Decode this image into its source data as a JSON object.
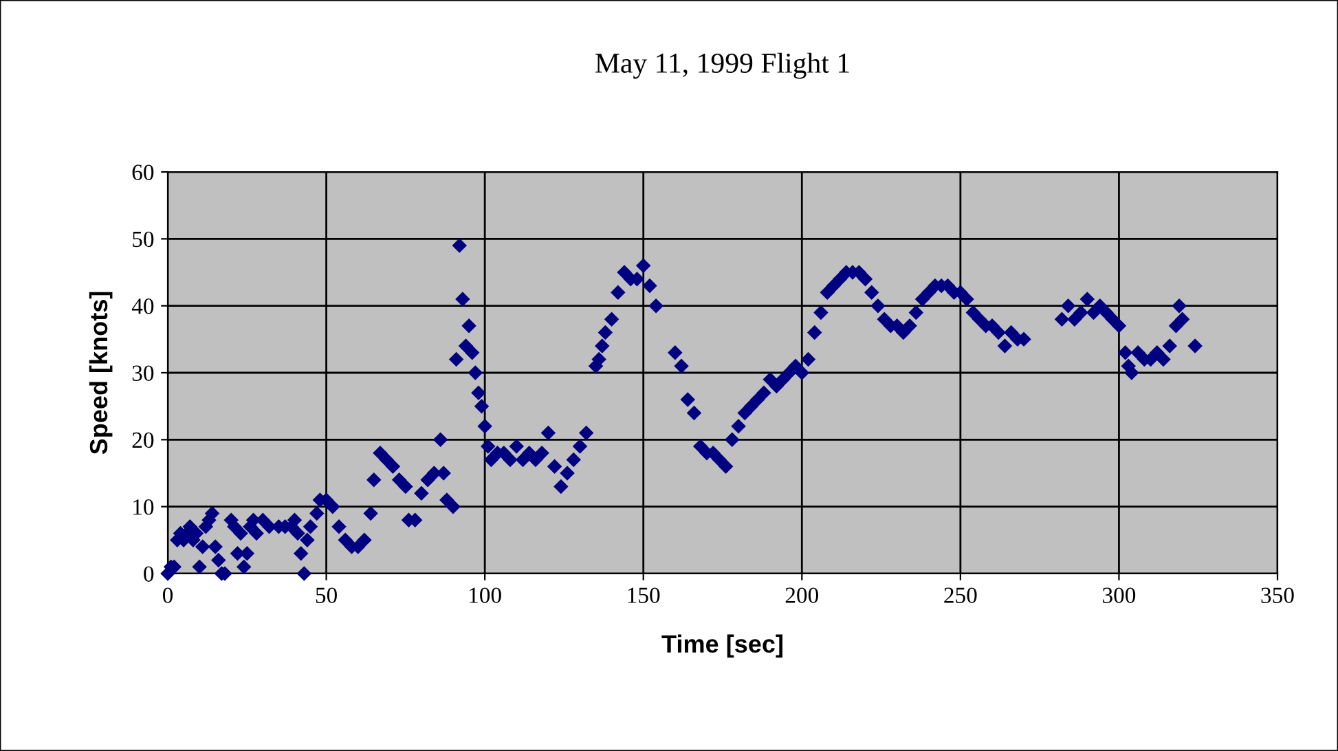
{
  "chart_data": {
    "type": "scatter",
    "title": "May 11, 1999 Flight 1",
    "xlabel": "Time [sec]",
    "ylabel": "Speed [knots]",
    "xlim": [
      0,
      350
    ],
    "ylim": [
      0,
      60
    ],
    "xticks": [
      0,
      50,
      100,
      150,
      200,
      250,
      300,
      350
    ],
    "yticks": [
      0,
      10,
      20,
      30,
      40,
      50,
      60
    ],
    "grid": true,
    "marker": "diamond",
    "series": [
      {
        "color": "#000080",
        "x": [
          0,
          1,
          2,
          3,
          4,
          5,
          6,
          7,
          8,
          9,
          10,
          11,
          12,
          13,
          14,
          15,
          16,
          17,
          18,
          20,
          21,
          22,
          23,
          24,
          25,
          26,
          27,
          28,
          30,
          32,
          35,
          37,
          39,
          40,
          41,
          42,
          43,
          44,
          45,
          47,
          48,
          50,
          52,
          54,
          56,
          58,
          60,
          62,
          64,
          65,
          67,
          69,
          71,
          73,
          75,
          76,
          78,
          80,
          82,
          84,
          86,
          87,
          88,
          90,
          91,
          92,
          93,
          94,
          95,
          96,
          97,
          98,
          99,
          100,
          101,
          102,
          104,
          106,
          108,
          110,
          112,
          114,
          116,
          118,
          120,
          122,
          124,
          126,
          128,
          130,
          132,
          135,
          136,
          137,
          138,
          140,
          142,
          144,
          146,
          148,
          150,
          152,
          154,
          160,
          162,
          164,
          166,
          168,
          170,
          172,
          174,
          176,
          178,
          180,
          182,
          184,
          186,
          188,
          190,
          192,
          194,
          196,
          198,
          200,
          202,
          204,
          206,
          208,
          210,
          212,
          214,
          216,
          218,
          220,
          222,
          224,
          226,
          228,
          230,
          232,
          234,
          236,
          238,
          240,
          242,
          244,
          246,
          248,
          250,
          252,
          254,
          256,
          258,
          260,
          262,
          264,
          266,
          268,
          270,
          282,
          284,
          286,
          288,
          290,
          292,
          294,
          296,
          298,
          300,
          302,
          303,
          304,
          306,
          308,
          310,
          312,
          314,
          316,
          318,
          319,
          320,
          324
        ],
        "values": [
          0,
          1,
          1,
          5,
          6,
          5,
          6,
          7,
          5,
          6,
          1,
          4,
          7,
          8,
          9,
          4,
          2,
          0,
          0,
          8,
          7,
          3,
          6,
          1,
          3,
          7,
          8,
          6,
          8,
          7,
          7,
          7,
          7,
          8,
          6,
          3,
          0,
          5,
          7,
          9,
          11,
          11,
          10,
          7,
          5,
          4,
          4,
          5,
          9,
          14,
          18,
          17,
          16,
          14,
          13,
          8,
          8,
          12,
          14,
          15,
          20,
          15,
          11,
          10,
          32,
          49,
          41,
          34,
          37,
          33,
          30,
          27,
          25,
          22,
          19,
          17,
          18,
          18,
          17,
          19,
          17,
          18,
          17,
          18,
          21,
          16,
          13,
          15,
          17,
          19,
          21,
          31,
          32,
          34,
          36,
          38,
          42,
          45,
          44,
          44,
          46,
          43,
          40,
          33,
          31,
          26,
          24,
          19,
          18,
          18,
          17,
          16,
          20,
          22,
          24,
          25,
          26,
          27,
          29,
          28,
          29,
          30,
          31,
          30,
          32,
          36,
          39,
          42,
          43,
          44,
          45,
          45,
          45,
          44,
          42,
          40,
          38,
          37,
          37,
          36,
          37,
          39,
          41,
          42,
          43,
          43,
          43,
          42,
          42,
          41,
          39,
          38,
          37,
          37,
          36,
          34,
          36,
          35,
          35,
          38,
          40,
          38,
          39,
          41,
          39,
          40,
          39,
          38,
          37,
          33,
          31,
          30,
          33,
          32,
          32,
          33,
          32,
          34,
          37,
          40,
          38,
          34
        ]
      }
    ]
  }
}
